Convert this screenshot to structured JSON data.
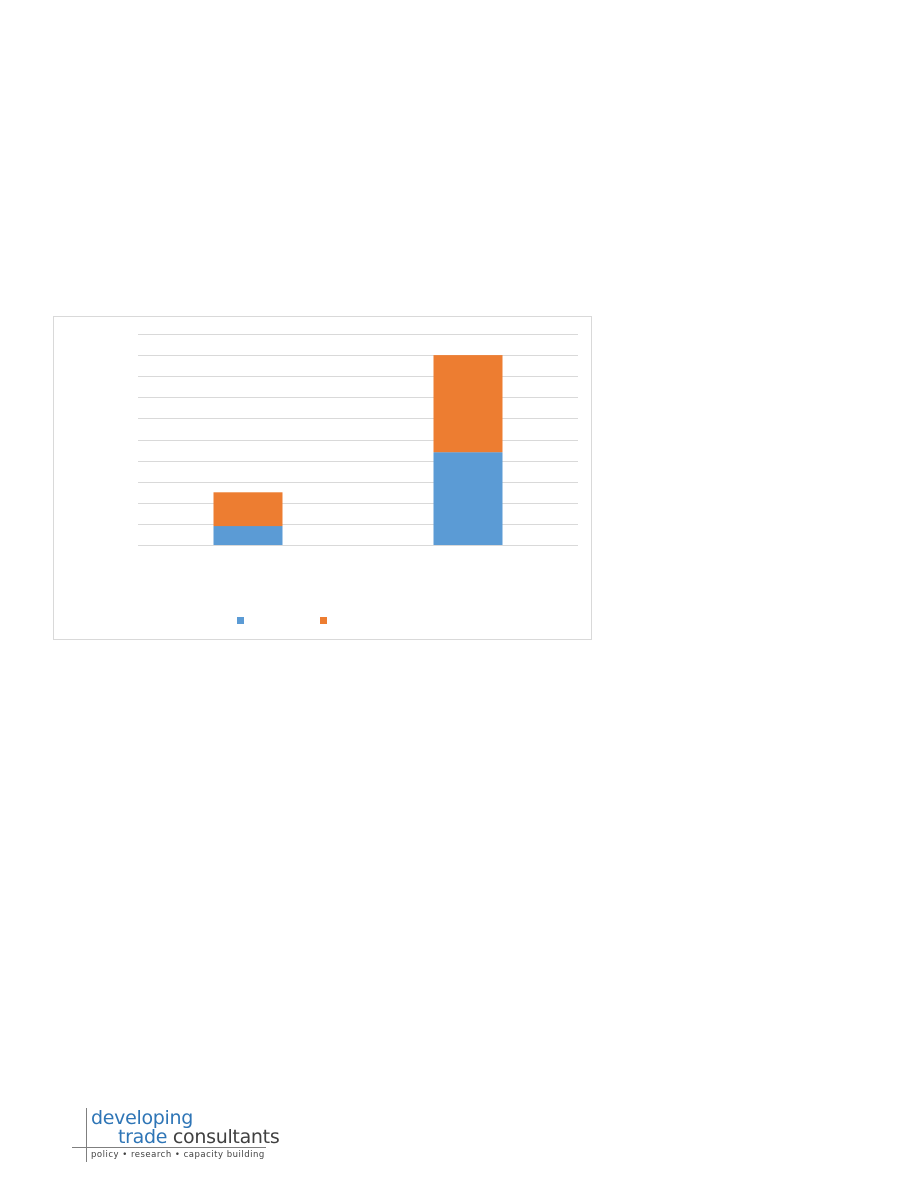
{
  "chart_data": {
    "type": "bar",
    "stacked": true,
    "categories": [
      "",
      ""
    ],
    "series": [
      {
        "color": "#5b9bd5",
        "values": [
          0.9,
          4.4
        ]
      },
      {
        "color": "#ed7d31",
        "values": [
          1.6,
          4.6
        ]
      }
    ],
    "ylim": [
      0,
      10
    ],
    "grid": true,
    "legend": "bottom"
  },
  "logo": {
    "line1": "developing",
    "line2_a": "trade",
    "line2_b": " consultants",
    "tagline": "policy  •  research  •  capacity building"
  }
}
